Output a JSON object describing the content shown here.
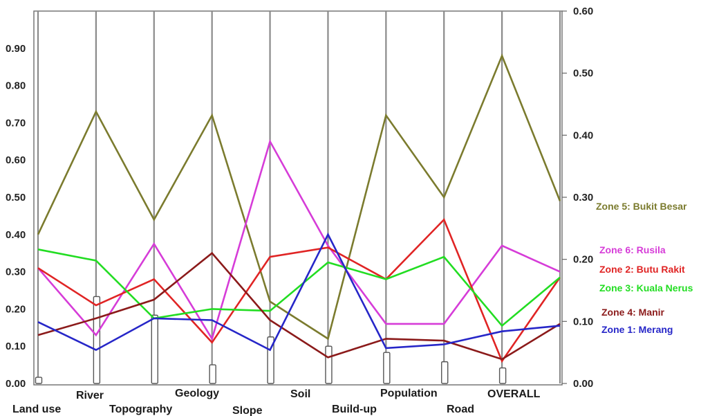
{
  "chart_data": {
    "type": "line",
    "categories": [
      "Land use",
      "River",
      "Topography",
      "Geology",
      "Slope",
      "Soil",
      "Build-up",
      "Population",
      "Road",
      "OVERALL"
    ],
    "left_axis": {
      "ylim": [
        0,
        1
      ],
      "ticks": [
        "0.00",
        "0.10",
        "0.20",
        "0.30",
        "0.40",
        "0.50",
        "0.60",
        "0.70",
        "0.80",
        "0.90"
      ]
    },
    "right_axis": {
      "ylim": [
        0,
        0.6
      ],
      "ticks": [
        "0.00",
        "0.10",
        "0.20",
        "0.30",
        "0.40",
        "0.50",
        "0.60"
      ]
    },
    "bars": {
      "axis": "right",
      "values": [
        0.01,
        0.14,
        0.11,
        0.03,
        0.075,
        0.06,
        0.05,
        0.035,
        0.025,
        0
      ]
    },
    "series": [
      {
        "name": "Zone 5: Bukit Besar",
        "color": "#7b7b2e",
        "values": [
          0.4,
          0.73,
          0.44,
          0.72,
          0.22,
          0.12,
          0.72,
          0.5,
          0.88,
          0.49
        ]
      },
      {
        "name": "Zone 6: Rusila",
        "color": "#d63cd8",
        "values": [
          0.31,
          0.13,
          0.375,
          0.12,
          0.65,
          0.37,
          0.16,
          0.16,
          0.37,
          0.3
        ]
      },
      {
        "name": "Zone 2: Butu Rakit",
        "color": "#e02424",
        "values": [
          0.31,
          0.21,
          0.28,
          0.11,
          0.34,
          0.365,
          0.28,
          0.44,
          0.06,
          0.285
        ]
      },
      {
        "name": "Zone 3: Kuala Nerus",
        "color": "#22dd22",
        "values": [
          0.36,
          0.33,
          0.175,
          0.2,
          0.195,
          0.325,
          0.28,
          0.34,
          0.155,
          0.285
        ]
      },
      {
        "name": "Zone 4: Manir",
        "color": "#8b1a1a",
        "values": [
          0.13,
          0.175,
          0.225,
          0.35,
          0.17,
          0.07,
          0.12,
          0.115,
          0.065,
          0.16
        ]
      },
      {
        "name": "Zone 1: Merang",
        "color": "#2626c8",
        "values": [
          0.165,
          0.09,
          0.175,
          0.17,
          0.09,
          0.4,
          0.095,
          0.105,
          0.14,
          0.155
        ]
      }
    ]
  }
}
